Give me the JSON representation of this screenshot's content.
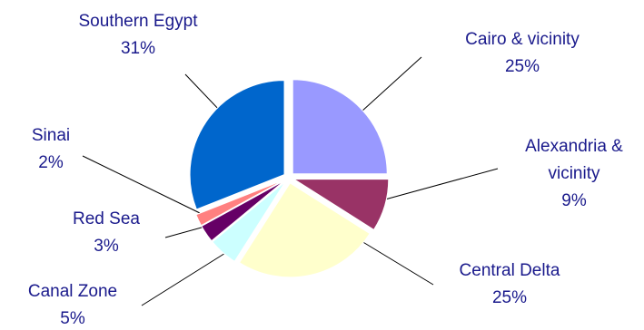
{
  "chart_data": {
    "type": "pie",
    "exploded": true,
    "slices": [
      {
        "label": "Cairo & vicinity",
        "value": 25,
        "value_label": "25%",
        "color": "#9999ff"
      },
      {
        "label": "Alexandria & vicinity",
        "value": 9,
        "value_label": "9%",
        "color": "#993366"
      },
      {
        "label": "Central Delta",
        "value": 25,
        "value_label": "25%",
        "color": "#ffffcc"
      },
      {
        "label": "Canal Zone",
        "value": 5,
        "value_label": "5%",
        "color": "#ccffff"
      },
      {
        "label": "Red Sea",
        "value": 3,
        "value_label": "3%",
        "color": "#660066"
      },
      {
        "label": "Sinai",
        "value": 2,
        "value_label": "2%",
        "color": "#ff8080"
      },
      {
        "label": "Southern Egypt",
        "value": 31,
        "value_label": "31%",
        "color": "#0066cc"
      }
    ],
    "legend": "none"
  }
}
